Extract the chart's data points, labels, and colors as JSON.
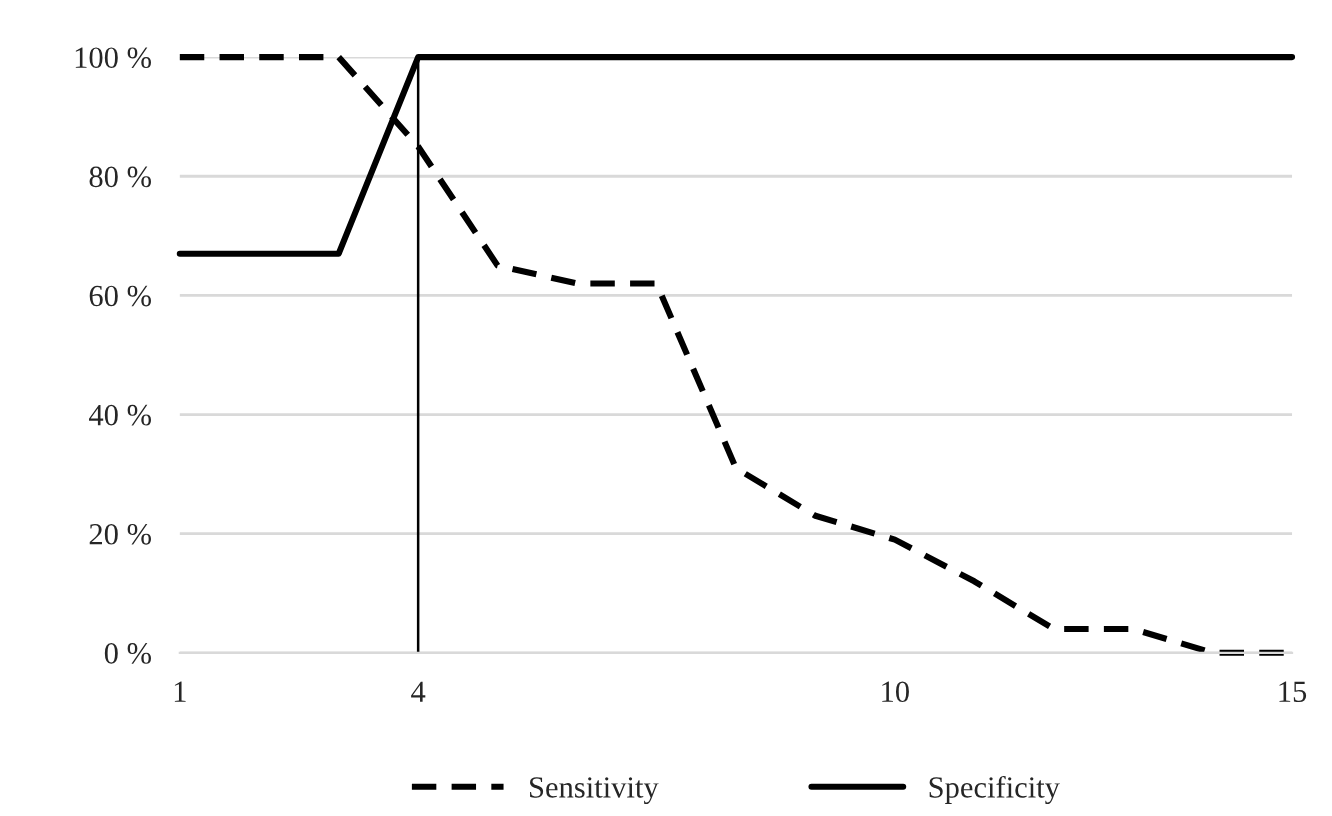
{
  "chart_data": {
    "type": "line",
    "x": [
      1,
      2,
      3,
      4,
      5,
      6,
      7,
      8,
      9,
      10,
      11,
      12,
      13,
      14,
      15
    ],
    "series": [
      {
        "name": "Sensitivity",
        "color": "#000000",
        "line_style": "dashed",
        "values": [
          100,
          100,
          100,
          85,
          65,
          62,
          62,
          31,
          23,
          19,
          12,
          4,
          4,
          0,
          0
        ]
      },
      {
        "name": "Specificity",
        "color": "#000000",
        "line_style": "solid",
        "values": [
          67,
          67,
          67,
          100,
          100,
          100,
          100,
          100,
          100,
          100,
          100,
          100,
          100,
          100,
          100
        ]
      }
    ],
    "xlim": [
      1,
      15
    ],
    "xticks": [
      1,
      4,
      10,
      15
    ],
    "ylim": [
      0,
      100
    ],
    "yticks": [
      {
        "value": 0,
        "label": "0 %"
      },
      {
        "value": 20,
        "label": "20 %"
      },
      {
        "value": 40,
        "label": "40 %"
      },
      {
        "value": 60,
        "label": "60 %"
      },
      {
        "value": 80,
        "label": "80 %"
      },
      {
        "value": 100,
        "label": "100 %"
      }
    ],
    "ref_lines": [
      {
        "axis": "x",
        "value": 4,
        "label": null,
        "color": "#000000"
      }
    ],
    "grid": "y",
    "legend": "bottom",
    "marker": "none"
  }
}
